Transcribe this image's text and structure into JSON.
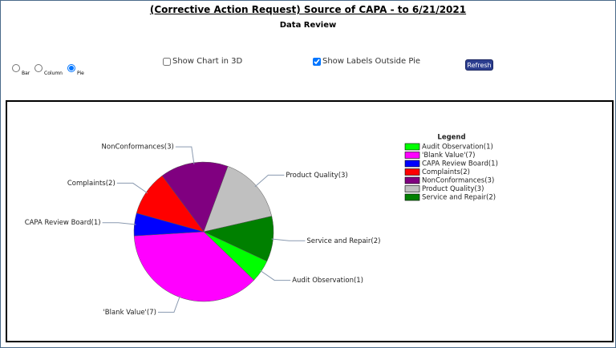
{
  "header": {
    "title": "(Corrective Action Request) Source of CAPA - to 6/21/2021",
    "subtitle": "Data Review"
  },
  "controls": {
    "chart_types": [
      "Bar",
      "Column",
      "Pie"
    ],
    "show_3d_label": "Show Chart in 3D",
    "show_3d": false,
    "labels_outside_label": "Show Labels Outside Pie",
    "labels_outside": true,
    "refresh": "Refresh"
  },
  "chart_data": {
    "type": "pie",
    "legend_title": "Legend",
    "legend": "right",
    "categories": [
      "Audit Observation(1)",
      "'Blank Value'(7)",
      "CAPA Review Board(1)",
      "Complaints(2)",
      "NonConformances(3)",
      "Product Quality(3)",
      "Service and Repair(2)"
    ],
    "values": [
      1,
      7,
      1,
      2,
      3,
      3,
      2
    ],
    "colors": [
      "#00ff00",
      "#ff00ff",
      "#0000ff",
      "#ff0000",
      "#800080",
      "#c0c0c0",
      "#008000"
    ]
  }
}
